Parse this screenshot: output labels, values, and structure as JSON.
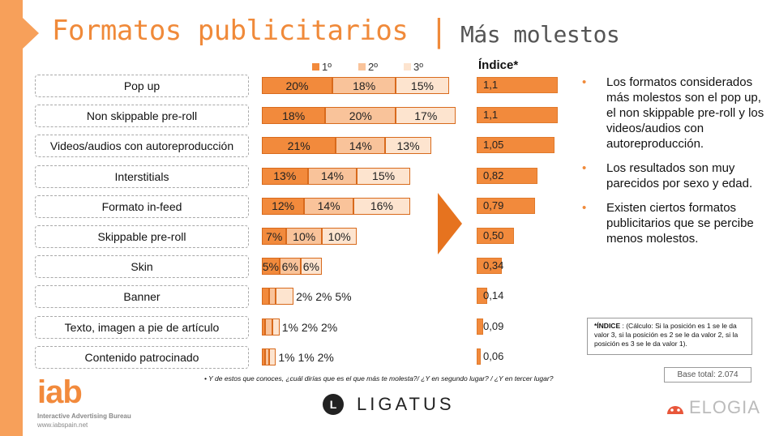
{
  "header": {
    "title": "Formatos publicitarios",
    "separator": "|",
    "subtitle": "Más molestos"
  },
  "legend": [
    {
      "label": "1º",
      "color": "#f28a3c"
    },
    {
      "label": "2º",
      "color": "#f9c39a"
    },
    {
      "label": "3º",
      "color": "#fde4cf"
    }
  ],
  "index_header": "Índice*",
  "chart_data": {
    "type": "bar",
    "stacked": true,
    "orientation": "horizontal",
    "categories": [
      "Pop up",
      "Non skippable pre-roll",
      "Videos/audios con autoreproducción",
      "Interstitials",
      "Formato in-feed",
      "Skippable pre-roll",
      "Skin",
      "Banner",
      "Texto, imagen a pie de artículo",
      "Contenido patrocinado"
    ],
    "series": [
      {
        "name": "1º",
        "values": [
          20,
          18,
          21,
          13,
          12,
          7,
          5,
          2,
          1,
          1
        ],
        "labels": [
          "20%",
          "18%",
          "21%",
          "13%",
          "12%",
          "7%",
          "5%",
          "2%",
          "1%",
          "1%"
        ]
      },
      {
        "name": "2º",
        "values": [
          18,
          20,
          14,
          14,
          14,
          10,
          6,
          2,
          2,
          1
        ],
        "labels": [
          "18%",
          "20%",
          "14%",
          "14%",
          "14%",
          "10%",
          "6%",
          "2%",
          "2%",
          "1%"
        ]
      },
      {
        "name": "3º",
        "values": [
          15,
          17,
          13,
          15,
          16,
          10,
          6,
          5,
          2,
          2
        ],
        "labels": [
          "15%",
          "17%",
          "13%",
          "15%",
          "16%",
          "10%",
          "6%",
          "5%",
          "2%",
          "2%"
        ]
      }
    ],
    "index": {
      "name": "Índice*",
      "values": [
        1.1,
        1.1,
        1.05,
        0.82,
        0.79,
        0.5,
        0.34,
        0.14,
        0.09,
        0.06
      ],
      "labels": [
        "1,1",
        "1,1",
        "1,05",
        "0,82",
        "0,79",
        "0,50",
        "0,34",
        "0,14",
        "0,09",
        "0,06"
      ]
    }
  },
  "bullets": [
    "Los formatos considerados más molestos son el pop up, el non skippable pre-roll y los videos/audios con autoreproducción.",
    "Los resultados son muy parecidos por sexo y edad.",
    "Existen ciertos formatos publicitarios que se percibe menos molestos."
  ],
  "index_note": {
    "term": "*ÍNDICE",
    "text": ": (Cálculo: Si la posición es 1 se le da valor 3, si la posición es 2 se le da valor 2, si la posición es 3 se le da valor 1)."
  },
  "base_total": "Base total: 2.074",
  "question": "•   Y de estos que conoces, ¿cuál dirías que es el que más te molesta?/ ¿Y en segundo lugar? /  ¿Y en tercer lugar?",
  "footer": {
    "iab_logo": "iab",
    "iab_name": "Interactive Advertising Bureau",
    "iab_url": "www.iabspain.net",
    "ligatus_mark": "L",
    "ligatus_name": "LIGATUS",
    "elogia_name": "ELOGIA"
  },
  "colors": {
    "accent": "#f08a3a",
    "first": "#f28a3c",
    "second": "#f9c39a",
    "third": "#fde4cf",
    "arrow": "#e6731f"
  }
}
